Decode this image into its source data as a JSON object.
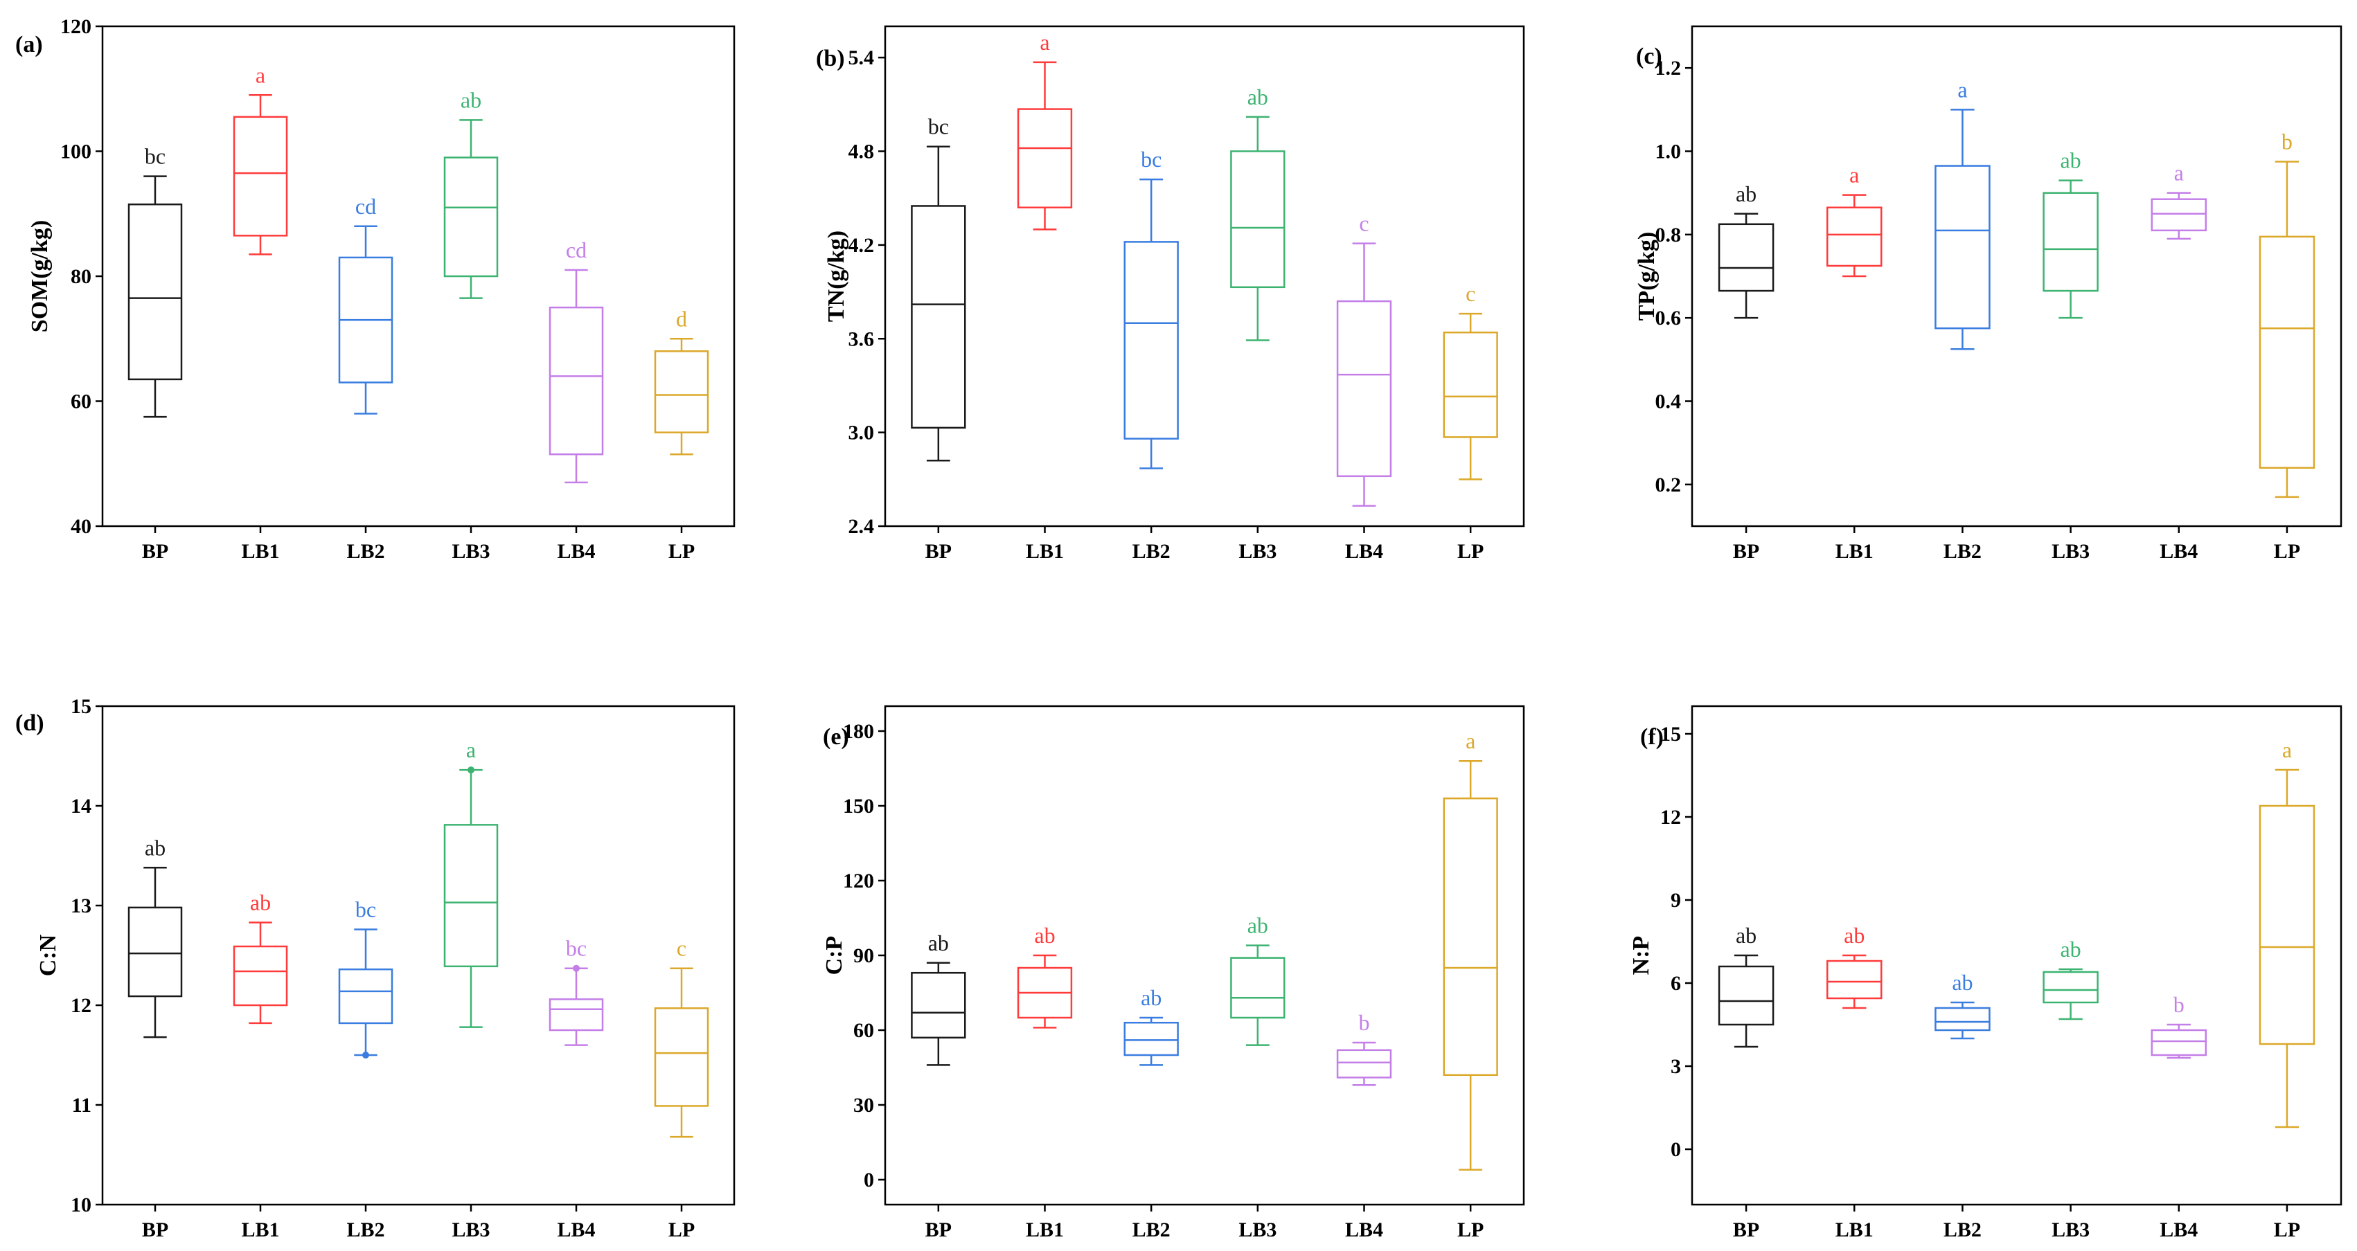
{
  "chart_data": [
    {
      "panel": "(a)",
      "type": "box",
      "ylabel": "SOM(g/kg)",
      "categories": [
        "BP",
        "LB1",
        "LB2",
        "LB3",
        "LB4",
        "LP"
      ],
      "ylim": [
        40,
        120
      ],
      "yticks": [
        40,
        60,
        80,
        100,
        120
      ],
      "boxes": [
        {
          "category": "BP",
          "min": 57.5,
          "q1": 63.5,
          "median": 76.5,
          "q3": 91.5,
          "max": 96,
          "sig": "bc"
        },
        {
          "category": "LB1",
          "min": 83.5,
          "q1": 86.5,
          "median": 96.5,
          "q3": 105.5,
          "max": 109,
          "sig": "a"
        },
        {
          "category": "LB2",
          "min": 58,
          "q1": 63,
          "median": 73,
          "q3": 83,
          "max": 88,
          "sig": "cd"
        },
        {
          "category": "LB3",
          "min": 76.5,
          "q1": 80,
          "median": 91,
          "q3": 99,
          "max": 105,
          "sig": "ab"
        },
        {
          "category": "LB4",
          "min": 47,
          "q1": 51.5,
          "median": 64,
          "q3": 75,
          "max": 81,
          "sig": "cd"
        },
        {
          "category": "LP",
          "min": 51.5,
          "q1": 55,
          "median": 61,
          "q3": 68,
          "max": 70,
          "sig": "d"
        }
      ]
    },
    {
      "panel": "(b)",
      "type": "box",
      "ylabel": "TN(g/kg)",
      "categories": [
        "BP",
        "LB1",
        "LB2",
        "LB3",
        "LB4",
        "LP"
      ],
      "ylim": [
        2.4,
        5.6
      ],
      "yticks": [
        2.4,
        3.0,
        3.6,
        4.2,
        4.8,
        5.4
      ],
      "boxes": [
        {
          "category": "BP",
          "min": 2.82,
          "q1": 3.03,
          "median": 3.82,
          "q3": 4.45,
          "max": 4.83,
          "sig": "bc"
        },
        {
          "category": "LB1",
          "min": 4.3,
          "q1": 4.44,
          "median": 4.82,
          "q3": 5.07,
          "max": 5.37,
          "sig": "a"
        },
        {
          "category": "LB2",
          "min": 2.77,
          "q1": 2.96,
          "median": 3.7,
          "q3": 4.22,
          "max": 4.62,
          "sig": "bc"
        },
        {
          "category": "LB3",
          "min": 3.59,
          "q1": 3.93,
          "median": 4.31,
          "q3": 4.8,
          "max": 5.02,
          "sig": "ab"
        },
        {
          "category": "LB4",
          "min": 2.53,
          "q1": 2.72,
          "median": 3.37,
          "q3": 3.84,
          "max": 4.21,
          "sig": "c"
        },
        {
          "category": "LP",
          "min": 2.7,
          "q1": 2.97,
          "median": 3.23,
          "q3": 3.64,
          "max": 3.76,
          "sig": "c"
        }
      ]
    },
    {
      "panel": "(c)",
      "type": "box",
      "ylabel": "TP(g/kg)",
      "categories": [
        "BP",
        "LB1",
        "LB2",
        "LB3",
        "LB4",
        "LP"
      ],
      "ylim": [
        0.1,
        1.3
      ],
      "yticks": [
        0.2,
        0.4,
        0.6,
        0.8,
        1.0,
        1.2
      ],
      "boxes": [
        {
          "category": "BP",
          "min": 0.6,
          "q1": 0.665,
          "median": 0.72,
          "q3": 0.825,
          "max": 0.85,
          "sig": "ab"
        },
        {
          "category": "LB1",
          "min": 0.7,
          "q1": 0.725,
          "median": 0.8,
          "q3": 0.865,
          "max": 0.895,
          "sig": "a"
        },
        {
          "category": "LB2",
          "min": 0.525,
          "q1": 0.575,
          "median": 0.81,
          "q3": 0.965,
          "max": 1.1,
          "sig": "a"
        },
        {
          "category": "LB3",
          "min": 0.6,
          "q1": 0.665,
          "median": 0.765,
          "q3": 0.9,
          "max": 0.93,
          "sig": "ab"
        },
        {
          "category": "LB4",
          "min": 0.79,
          "q1": 0.81,
          "median": 0.85,
          "q3": 0.885,
          "max": 0.9,
          "sig": "a"
        },
        {
          "category": "LP",
          "min": 0.17,
          "q1": 0.24,
          "median": 0.575,
          "q3": 0.795,
          "max": 0.975,
          "sig": "b"
        }
      ]
    },
    {
      "panel": "(d)",
      "type": "box",
      "ylabel": "C:N",
      "categories": [
        "BP",
        "LB1",
        "LB2",
        "LB3",
        "LB4",
        "LP"
      ],
      "ylim": [
        10,
        15
      ],
      "yticks": [
        10,
        11,
        12,
        13,
        14,
        15
      ],
      "boxes": [
        {
          "category": "BP",
          "min": 11.68,
          "q1": 12.09,
          "median": 12.52,
          "q3": 12.98,
          "max": 13.38,
          "sig": "ab"
        },
        {
          "category": "LB1",
          "min": 11.82,
          "q1": 12.0,
          "median": 12.34,
          "q3": 12.59,
          "max": 12.83,
          "sig": "ab"
        },
        {
          "category": "LB2",
          "min": 11.5,
          "q1": 11.82,
          "median": 12.14,
          "q3": 12.36,
          "max": 12.76,
          "outliers": [
            11.5
          ],
          "sig": "bc"
        },
        {
          "category": "LB3",
          "min": 11.78,
          "q1": 12.39,
          "median": 13.03,
          "q3": 13.81,
          "max": 14.36,
          "outliers": [
            14.36
          ],
          "sig": "a"
        },
        {
          "category": "LB4",
          "min": 11.6,
          "q1": 11.75,
          "median": 11.96,
          "q3": 12.06,
          "max": 12.37,
          "outliers": [
            12.37
          ],
          "sig": "bc"
        },
        {
          "category": "LP",
          "min": 10.68,
          "q1": 10.99,
          "median": 11.52,
          "q3": 11.97,
          "max": 12.37,
          "sig": "c"
        }
      ]
    },
    {
      "panel": "(e)",
      "type": "box",
      "ylabel": "C:P",
      "categories": [
        "BP",
        "LB1",
        "LB2",
        "LB3",
        "LB4",
        "LP"
      ],
      "ylim": [
        -10,
        190
      ],
      "yticks": [
        0,
        30,
        60,
        90,
        120,
        150,
        180
      ],
      "boxes": [
        {
          "category": "BP",
          "min": 46,
          "q1": 57,
          "median": 67,
          "q3": 83,
          "max": 87,
          "sig": "ab"
        },
        {
          "category": "LB1",
          "min": 61,
          "q1": 65,
          "median": 75,
          "q3": 85,
          "max": 90,
          "sig": "ab"
        },
        {
          "category": "LB2",
          "min": 46,
          "q1": 50,
          "median": 56,
          "q3": 63,
          "max": 65,
          "sig": "ab"
        },
        {
          "category": "LB3",
          "min": 54,
          "q1": 65,
          "median": 73,
          "q3": 89,
          "max": 94,
          "sig": "ab"
        },
        {
          "category": "LB4",
          "min": 38,
          "q1": 41,
          "median": 47,
          "q3": 52,
          "max": 55,
          "sig": "b"
        },
        {
          "category": "LP",
          "min": 4,
          "q1": 42,
          "median": 85,
          "q3": 153,
          "max": 168,
          "sig": "a"
        }
      ]
    },
    {
      "panel": "(f)",
      "type": "box",
      "ylabel": "N:P",
      "categories": [
        "BP",
        "LB1",
        "LB2",
        "LB3",
        "LB4",
        "LP"
      ],
      "ylim": [
        -2,
        16
      ],
      "yticks": [
        0,
        3,
        6,
        9,
        12,
        15
      ],
      "boxes": [
        {
          "category": "BP",
          "min": 3.7,
          "q1": 4.5,
          "median": 5.35,
          "q3": 6.6,
          "max": 7.0,
          "sig": "ab"
        },
        {
          "category": "LB1",
          "min": 5.1,
          "q1": 5.45,
          "median": 6.05,
          "q3": 6.8,
          "max": 7.0,
          "sig": "ab"
        },
        {
          "category": "LB2",
          "min": 4.0,
          "q1": 4.3,
          "median": 4.6,
          "q3": 5.1,
          "max": 5.3,
          "sig": "ab"
        },
        {
          "category": "LB3",
          "min": 4.7,
          "q1": 5.3,
          "median": 5.75,
          "q3": 6.4,
          "max": 6.5,
          "sig": "ab"
        },
        {
          "category": "LB4",
          "min": 3.3,
          "q1": 3.4,
          "median": 3.9,
          "q3": 4.3,
          "max": 4.5,
          "sig": "b"
        },
        {
          "category": "LP",
          "min": 0.8,
          "q1": 3.8,
          "median": 7.3,
          "q3": 12.4,
          "max": 13.7,
          "sig": "a"
        }
      ]
    }
  ],
  "colors": {
    "BP": "#1a1a1a",
    "LB1": "#ff3b3b",
    "LB2": "#3a7de0",
    "LB3": "#3cb371",
    "LB4": "#c47ee8",
    "LP": "#dca82a"
  }
}
